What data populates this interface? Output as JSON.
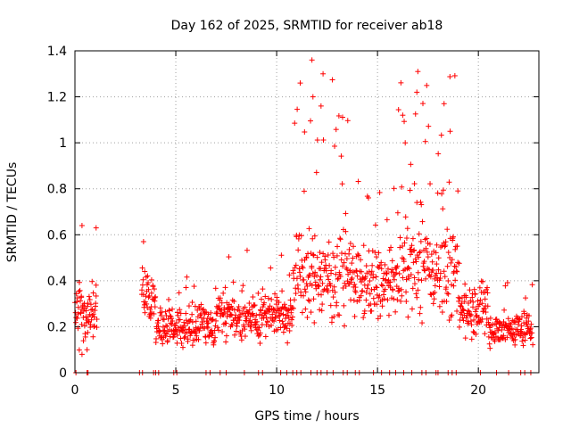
{
  "chart_data": {
    "type": "scatter",
    "title": "Day 162 of 2025, SRMTID for receiver ab18",
    "xlabel": "GPS time / hours",
    "ylabel": "SRMTID / TECUs",
    "xlim": [
      0,
      23
    ],
    "ylim": [
      0,
      1.4
    ],
    "x_ticks": [
      0,
      5,
      10,
      15,
      20
    ],
    "x_tick_labels": [
      "0",
      "5",
      "10",
      "15",
      "20"
    ],
    "y_ticks": [
      0,
      0.2,
      0.4,
      0.6,
      0.8,
      1,
      1.2,
      1.4
    ],
    "y_tick_labels": [
      "0",
      "0.2",
      "0.4",
      "0.6",
      "0.8",
      "1",
      "1.2",
      "1.4"
    ],
    "grid": true,
    "marker": "+",
    "series": [
      {
        "name": "SRMTID",
        "color": "#ff0000",
        "segments": [
          {
            "start": 0.0,
            "end": 1.1,
            "base": 0.25,
            "spread": 0.12,
            "peak_frac": 0.05,
            "peak_max": 0.64
          },
          {
            "start": 3.3,
            "end": 4.0,
            "base": 0.33,
            "spread": 0.1,
            "peak_frac": 0.05,
            "peak_max": 0.57
          },
          {
            "start": 4.0,
            "end": 7.0,
            "base": 0.2,
            "spread": 0.08,
            "peak_frac": 0.04,
            "peak_max": 0.45
          },
          {
            "start": 7.0,
            "end": 10.8,
            "base": 0.25,
            "spread": 0.09,
            "peak_frac": 0.04,
            "peak_max": 0.55
          },
          {
            "start": 10.8,
            "end": 14.0,
            "base": 0.42,
            "spread": 0.16,
            "peak_frac": 0.12,
            "peak_max": 1.36
          },
          {
            "start": 14.0,
            "end": 16.0,
            "base": 0.38,
            "spread": 0.14,
            "peak_frac": 0.06,
            "peak_max": 0.85
          },
          {
            "start": 16.0,
            "end": 19.0,
            "base": 0.45,
            "spread": 0.18,
            "peak_frac": 0.14,
            "peak_max": 1.31
          },
          {
            "start": 19.0,
            "end": 20.5,
            "base": 0.28,
            "spread": 0.1,
            "peak_frac": 0.04,
            "peak_max": 0.52
          },
          {
            "start": 20.5,
            "end": 22.7,
            "base": 0.19,
            "spread": 0.07,
            "peak_frac": 0.04,
            "peak_max": 0.42
          }
        ],
        "highlights": [
          {
            "x": 11.75,
            "y": 1.36
          },
          {
            "x": 12.3,
            "y": 1.3
          },
          {
            "x": 17.0,
            "y": 1.31
          },
          {
            "x": 11.8,
            "y": 1.2
          },
          {
            "x": 16.95,
            "y": 1.22
          },
          {
            "x": 18.3,
            "y": 1.17
          },
          {
            "x": 12.2,
            "y": 1.16
          },
          {
            "x": 16.25,
            "y": 1.12
          },
          {
            "x": 18.6,
            "y": 1.05
          },
          {
            "x": 1.05,
            "y": 0.63
          },
          {
            "x": 0.35,
            "y": 0.64
          },
          {
            "x": 3.4,
            "y": 0.57
          },
          {
            "x": 0.35,
            "y": 0.08
          },
          {
            "x": 0.6,
            "y": 0.1
          }
        ],
        "baseline_marks": [
          3.2,
          3.35,
          3.9,
          4.0,
          4.15,
          4.9,
          5.05,
          6.5,
          6.7,
          7.2,
          7.5,
          8.4,
          9.1,
          9.3,
          10.2,
          10.5,
          10.8,
          11.0,
          11.2,
          11.7,
          12.0,
          12.2,
          12.5,
          12.8,
          13.3,
          13.5,
          13.9,
          14.1,
          14.8,
          15.2,
          15.6,
          15.9,
          16.3,
          16.7,
          17.2,
          17.4,
          17.9,
          18.0,
          18.5,
          18.7,
          18.9,
          20.1,
          20.9,
          21.5,
          22.1,
          22.3,
          22.6,
          0.05,
          0.6,
          0.65
        ]
      }
    ]
  }
}
